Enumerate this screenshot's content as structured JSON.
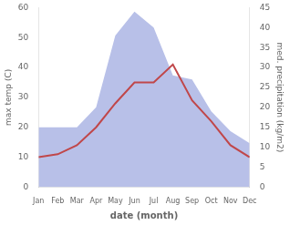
{
  "chart_data": {
    "type": "line",
    "xlabel": "date (month)",
    "ylabel": "max temp (C)",
    "y2label": "med. precipitation (kg/m2)",
    "categories": [
      "Jan",
      "Feb",
      "Mar",
      "Apr",
      "May",
      "Jun",
      "Jul",
      "Aug",
      "Sep",
      "Oct",
      "Nov",
      "Dec"
    ],
    "series": [
      {
        "type": "area",
        "axis": "y2",
        "color": "#b8c0e8",
        "values": [
          15,
          15,
          15,
          20,
          38,
          44,
          40,
          28,
          27,
          19,
          14,
          11
        ]
      },
      {
        "type": "line",
        "color": "#c0474a",
        "values": [
          10,
          11,
          14,
          20,
          28,
          35,
          35,
          41,
          29,
          22,
          14,
          10
        ]
      }
    ],
    "ylim": [
      0,
      60
    ],
    "yticks": [
      0,
      10,
      20,
      30,
      40,
      50,
      60
    ],
    "y2lim": [
      0,
      45
    ],
    "y2ticks": [
      0,
      5,
      10,
      15,
      20,
      25,
      30,
      35,
      40,
      45
    ],
    "grid": false
  }
}
